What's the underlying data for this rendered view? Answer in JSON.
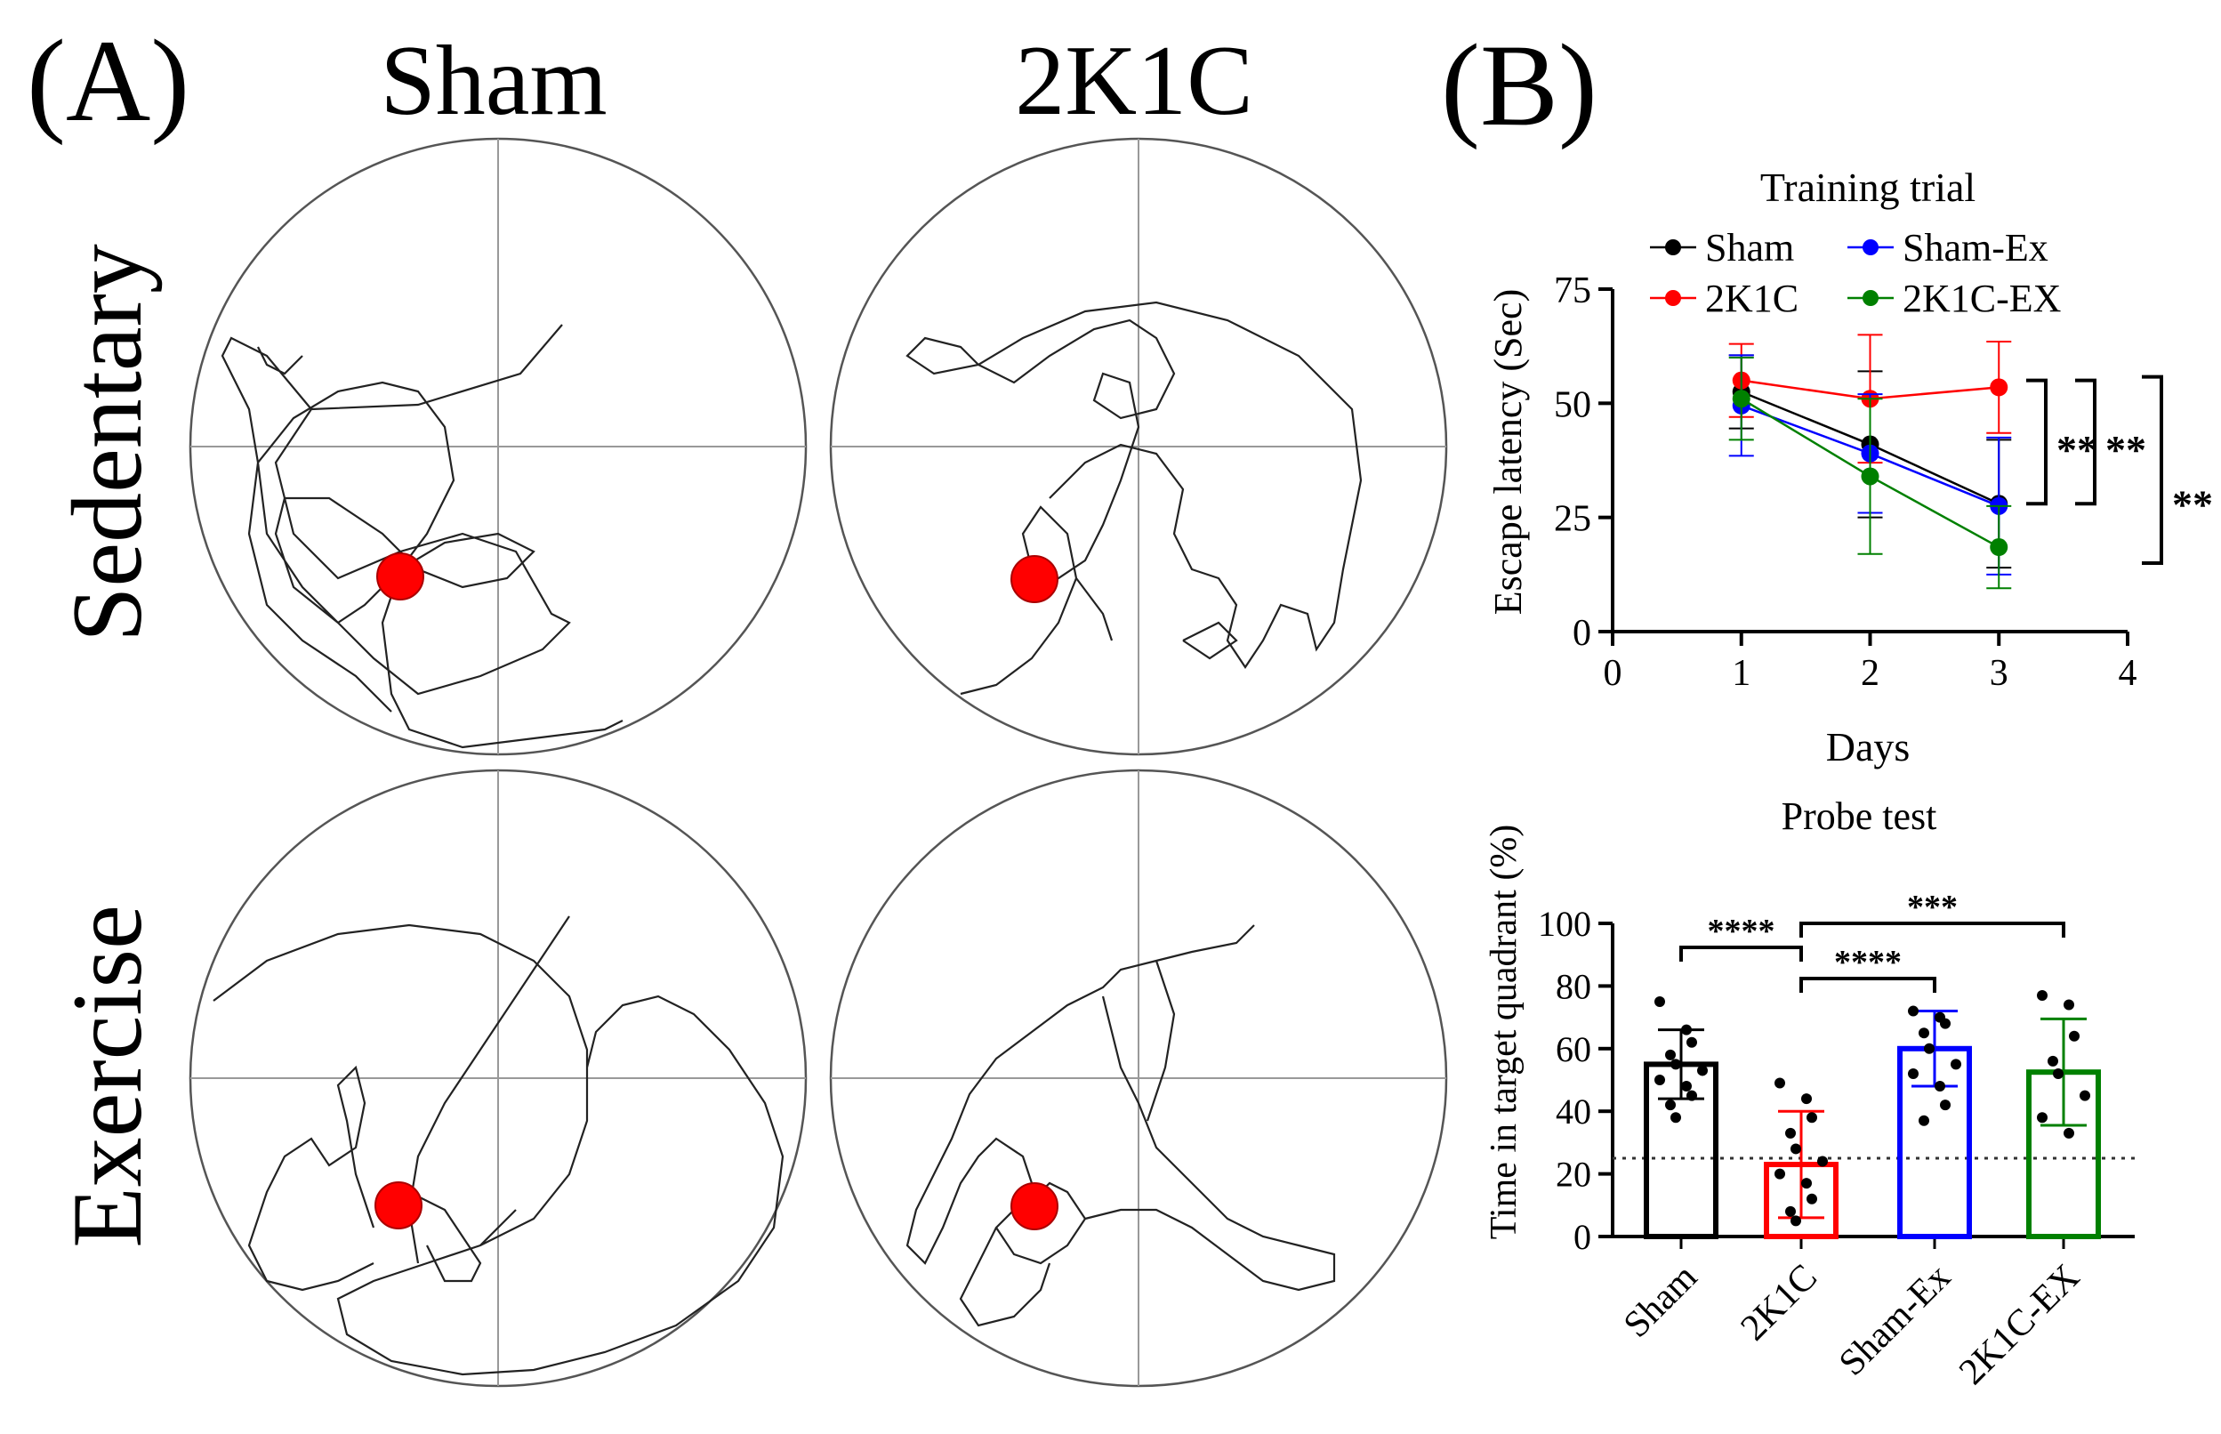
{
  "panel_a": {
    "label": "(A)",
    "col_labels": [
      "Sham",
      "2K1C"
    ],
    "row_labels": [
      "Sedentary",
      "Exercise"
    ]
  },
  "panel_b": {
    "label": "(B)"
  },
  "chart_data": [
    {
      "type": "line",
      "title": "Training trial",
      "xlabel": "Days",
      "ylabel": "Escape latency (Sec)",
      "xlim": [
        0,
        4
      ],
      "ylim": [
        0,
        75
      ],
      "xticks": [
        "0",
        "1",
        "2",
        "3",
        "4"
      ],
      "yticks": [
        "0",
        "25",
        "50",
        "75"
      ],
      "x": [
        1,
        2,
        3
      ],
      "series": [
        {
          "name": "Sham",
          "color": "#000000",
          "values": [
            52.5,
            41,
            28
          ],
          "err": [
            8,
            16,
            14
          ]
        },
        {
          "name": "2K1C",
          "color": "#ff0000",
          "values": [
            55,
            51,
            53.5
          ],
          "err": [
            8,
            14,
            10
          ]
        },
        {
          "name": "Sham-Ex",
          "color": "#0000ff",
          "values": [
            49.5,
            39,
            27.5
          ],
          "err": [
            11,
            13,
            15
          ]
        },
        {
          "name": "2K1C-EX",
          "color": "#008000",
          "values": [
            51,
            34,
            18.5
          ],
          "err": [
            9,
            17,
            9
          ]
        }
      ],
      "legend_order": [
        "Sham",
        "Sham-Ex",
        "2K1C",
        "2K1C-EX"
      ],
      "significance": [
        {
          "label": "**",
          "color": "#ff0000",
          "range": [
            28,
            55
          ]
        },
        {
          "label": "**",
          "color": "#0000ff",
          "range": [
            28,
            55
          ]
        },
        {
          "label": "**",
          "color": "#008000",
          "range": [
            15,
            55
          ]
        }
      ]
    },
    {
      "type": "bar",
      "title": "Probe test",
      "xlabel": "",
      "ylabel": "Time in target quadrant (%)",
      "ylim": [
        0,
        100
      ],
      "yticks": [
        "0",
        "20",
        "40",
        "60",
        "80",
        "100"
      ],
      "chance_level": 25,
      "categories": [
        "Sham",
        "2K1C",
        "Sham-Ex",
        "2K1C-EX"
      ],
      "colors": [
        "#000000",
        "#ff0000",
        "#0000ff",
        "#008000"
      ],
      "values": [
        55,
        23,
        60,
        52.5
      ],
      "err": [
        11,
        17,
        12,
        17
      ],
      "points": [
        [
          75,
          66,
          62,
          58,
          55,
          53,
          50,
          48,
          45,
          42,
          38
        ],
        [
          49,
          44,
          38,
          33,
          28,
          24,
          20,
          17,
          12,
          8,
          5
        ],
        [
          72,
          70,
          68,
          65,
          60,
          55,
          52,
          48,
          42,
          37
        ],
        [
          77,
          74,
          64,
          56,
          52,
          45,
          38,
          33
        ]
      ],
      "comparisons": [
        {
          "label": "****",
          "between": [
            "Sham",
            "2K1C"
          ]
        },
        {
          "label": "***",
          "between": [
            "2K1C",
            "2K1C-EX"
          ]
        },
        {
          "label": "****",
          "between": [
            "2K1C",
            "Sham-Ex"
          ]
        }
      ]
    }
  ]
}
